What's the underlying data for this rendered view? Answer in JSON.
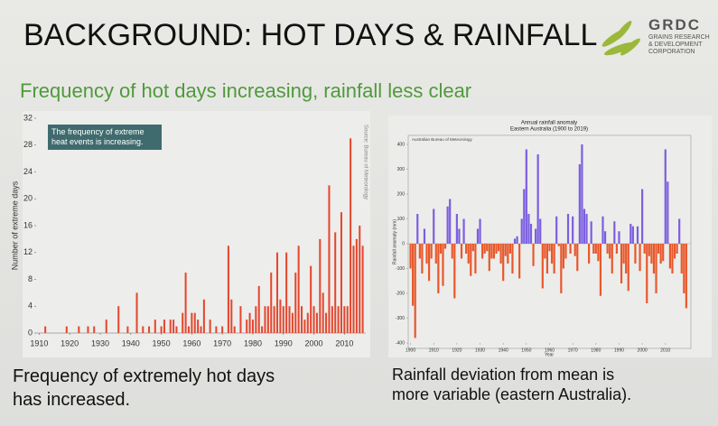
{
  "slide": {
    "title": "BACKGROUND: HOT DAYS & RAINFALL",
    "subtitle": "Frequency of hot days increasing, rainfall less clear",
    "logo": {
      "name": "GRDC",
      "lines": [
        "GRAINS RESEARCH",
        "& DEVELOPMENT",
        "CORPORATION"
      ]
    },
    "captions": [
      [
        "Frequency of extremely hot  days",
        "has increased."
      ],
      [
        "Rainfall deviation from mean is",
        "more variable (eastern Australia)."
      ]
    ]
  },
  "chart_data": [
    {
      "type": "bar",
      "annotation": "The frequency of extreme heat events is increasing.",
      "source": "Source: Bureau of Meteorology",
      "y_label": "Number of extreme days",
      "color": "#e4472e",
      "x": [
        1912,
        1919,
        1923,
        1926,
        1928,
        1932,
        1936,
        1939,
        1942,
        1944,
        1946,
        1948,
        1950,
        1951,
        1953,
        1954,
        1955,
        1957,
        1958,
        1959,
        1960,
        1961,
        1962,
        1963,
        1964,
        1966,
        1968,
        1970,
        1972,
        1973,
        1974,
        1976,
        1978,
        1979,
        1980,
        1981,
        1982,
        1983,
        1984,
        1985,
        1986,
        1987,
        1988,
        1989,
        1990,
        1991,
        1992,
        1993,
        1994,
        1995,
        1996,
        1997,
        1998,
        1999,
        2000,
        2001,
        2002,
        2003,
        2004,
        2005,
        2006,
        2007,
        2008,
        2009,
        2010,
        2011,
        2012,
        2013,
        2014,
        2015,
        2016
      ],
      "values": [
        1,
        1,
        1,
        1,
        1,
        2,
        4,
        1,
        6,
        1,
        1,
        2,
        1,
        2,
        2,
        2,
        1,
        3,
        9,
        1,
        3,
        3,
        2,
        1,
        5,
        2,
        1,
        1,
        13,
        5,
        1,
        4,
        2,
        3,
        2,
        4,
        7,
        1,
        4,
        4,
        9,
        4,
        12,
        5,
        4,
        12,
        4,
        3,
        9,
        13,
        4,
        2,
        3,
        10,
        4,
        3,
        14,
        6,
        3,
        22,
        4,
        15,
        4,
        18,
        4,
        4,
        29,
        13,
        14,
        16,
        13
      ],
      "xlim": [
        1909,
        2017
      ],
      "xticks": [
        1910,
        1920,
        1930,
        1940,
        1950,
        1960,
        1970,
        1980,
        1990,
        2000,
        2010
      ],
      "ylim": [
        0,
        32
      ],
      "yticks": [
        0,
        4,
        8,
        12,
        16,
        20,
        24,
        28,
        32
      ]
    },
    {
      "type": "bar",
      "title": "Annual rainfall anomaly",
      "subtitle": "Eastern Australia (1900 to 2019)",
      "annotation": "Australian Bureau of Meteorology",
      "y_label": "Rainfall anomaly (mm)",
      "x_label": "Year",
      "colors": {
        "positive": "#7b5ee0",
        "negative": "#e8572a"
      },
      "x": [
        1900,
        1901,
        1902,
        1903,
        1904,
        1905,
        1906,
        1907,
        1908,
        1909,
        1910,
        1911,
        1912,
        1913,
        1914,
        1915,
        1916,
        1917,
        1918,
        1919,
        1920,
        1921,
        1922,
        1923,
        1924,
        1925,
        1926,
        1927,
        1928,
        1929,
        1930,
        1931,
        1932,
        1933,
        1934,
        1935,
        1936,
        1937,
        1938,
        1939,
        1940,
        1941,
        1942,
        1943,
        1944,
        1945,
        1946,
        1947,
        1948,
        1949,
        1950,
        1951,
        1952,
        1953,
        1954,
        1955,
        1956,
        1957,
        1958,
        1959,
        1960,
        1961,
        1962,
        1963,
        1964,
        1965,
        1966,
        1967,
        1968,
        1969,
        1970,
        1971,
        1972,
        1973,
        1974,
        1975,
        1976,
        1977,
        1978,
        1979,
        1980,
        1981,
        1982,
        1983,
        1984,
        1985,
        1986,
        1987,
        1988,
        1989,
        1990,
        1991,
        1992,
        1993,
        1994,
        1995,
        1996,
        1997,
        1998,
        1999,
        2000,
        2001,
        2002,
        2003,
        2004,
        2005,
        2006,
        2007,
        2008,
        2009,
        2010,
        2011,
        2012,
        2013,
        2014,
        2015,
        2016,
        2017,
        2018,
        2019
      ],
      "values": [
        -100,
        -250,
        -380,
        120,
        -60,
        -120,
        60,
        -80,
        -150,
        -60,
        140,
        -80,
        -200,
        -40,
        -170,
        -20,
        150,
        180,
        -60,
        -220,
        120,
        60,
        -60,
        100,
        -40,
        -80,
        -130,
        -30,
        -120,
        60,
        100,
        -60,
        -40,
        -30,
        -110,
        -60,
        -60,
        -40,
        -30,
        -80,
        -150,
        -50,
        -80,
        -40,
        -120,
        20,
        30,
        -140,
        100,
        220,
        380,
        120,
        80,
        -90,
        60,
        360,
        100,
        -180,
        -60,
        -120,
        -30,
        -80,
        -120,
        110,
        -10,
        -200,
        -100,
        -60,
        120,
        -40,
        110,
        -50,
        -110,
        320,
        400,
        140,
        120,
        -80,
        90,
        -40,
        -40,
        -70,
        -210,
        110,
        50,
        -40,
        -60,
        -120,
        90,
        -40,
        50,
        -160,
        -80,
        -120,
        -190,
        80,
        70,
        -80,
        70,
        -110,
        220,
        -40,
        -240,
        -50,
        -80,
        -120,
        -200,
        -40,
        -80,
        -70,
        380,
        250,
        -100,
        -120,
        -60,
        -40,
        100,
        -120,
        -200,
        -260
      ],
      "xlim": [
        1899,
        2021
      ],
      "xticks": [
        1900,
        1910,
        1920,
        1930,
        1940,
        1950,
        1960,
        1970,
        1980,
        1990,
        2000,
        2010
      ],
      "ylim": [
        -400,
        400
      ],
      "yticks": [
        -400,
        -300,
        -200,
        -100,
        0,
        100,
        200,
        300,
        400
      ]
    }
  ]
}
